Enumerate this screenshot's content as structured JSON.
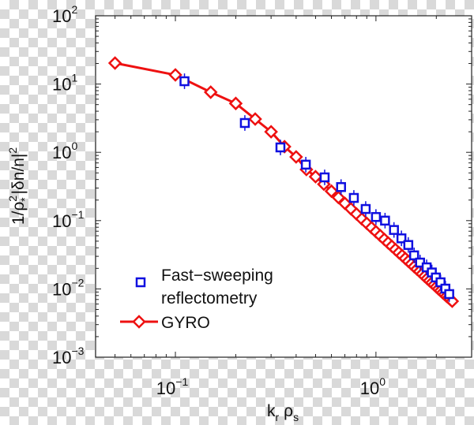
{
  "chart_data": {
    "type": "scatter",
    "x_scale": "log",
    "y_scale": "log",
    "xlim": [
      0.04,
      3
    ],
    "ylim": [
      0.001,
      100
    ],
    "xlabel": "k_r ρ_s",
    "ylabel": "1/ρ*² |δn/n|²",
    "x_ticks": [
      {
        "base": "10",
        "exp": "−1",
        "value": 0.1
      },
      {
        "base": "10",
        "exp": "0",
        "value": 1
      }
    ],
    "y_ticks": [
      {
        "base": "10",
        "exp": "2",
        "value": 100
      },
      {
        "base": "10",
        "exp": "1",
        "value": 10
      },
      {
        "base": "10",
        "exp": "0",
        "value": 1
      },
      {
        "base": "10",
        "exp": "−1",
        "value": 0.1
      },
      {
        "base": "10",
        "exp": "−2",
        "value": 0.01
      },
      {
        "base": "10",
        "exp": "−3",
        "value": 0.001
      }
    ],
    "grid": false,
    "legend_placement": "bottom-left",
    "series": [
      {
        "name": "Fast−sweeping reflectometry",
        "name_lines": [
          "Fast−sweeping",
          "reflectometry"
        ],
        "color": "#1010e0",
        "marker": "square",
        "error_bars": true,
        "x": [
          0.111,
          0.222,
          0.334,
          0.447,
          0.555,
          0.67,
          0.776,
          0.889,
          1.0,
          1.11,
          1.23,
          1.34,
          1.45,
          1.55,
          1.66,
          1.79,
          1.9,
          1.99,
          2.1,
          2.22,
          2.32
        ],
        "y": [
          11.0,
          2.69,
          1.18,
          0.66,
          0.43,
          0.31,
          0.215,
          0.148,
          0.113,
          0.1,
          0.073,
          0.055,
          0.044,
          0.031,
          0.0243,
          0.0207,
          0.0174,
          0.0147,
          0.0125,
          0.0101,
          0.0084
        ]
      },
      {
        "name": "GYRO",
        "color": "#ee1111",
        "marker": "diamond",
        "line": true,
        "x": [
          0.05,
          0.1,
          0.15,
          0.2,
          0.25,
          0.3,
          0.35,
          0.4,
          0.45,
          0.5,
          0.55,
          0.6,
          0.65,
          0.7,
          0.75,
          0.8,
          0.85,
          0.9,
          0.95,
          1.0,
          1.05,
          1.1,
          1.15,
          1.2,
          1.25,
          1.3,
          1.35,
          1.4,
          1.45,
          1.5,
          1.55,
          1.6,
          1.65,
          1.7,
          1.75,
          1.8,
          1.85,
          1.9,
          1.95,
          2.0,
          2.05,
          2.1,
          2.15,
          2.2,
          2.25,
          2.3,
          2.35,
          2.4
        ],
        "y": [
          20.3,
          13.6,
          7.6,
          5.2,
          3.07,
          2.0,
          1.21,
          0.857,
          0.56,
          0.44,
          0.341,
          0.27,
          0.218,
          0.179,
          0.149,
          0.125,
          0.106,
          0.0912,
          0.0789,
          0.0688,
          0.0604,
          0.0533,
          0.0473,
          0.0422,
          0.0378,
          0.034,
          0.0308,
          0.0279,
          0.0254,
          0.0232,
          0.0212,
          0.0195,
          0.018,
          0.0166,
          0.0153,
          0.0142,
          0.0132,
          0.0123,
          0.0115,
          0.0107,
          0.01,
          0.0094,
          0.0088,
          0.0083,
          0.0078,
          0.0074,
          0.007,
          0.0066
        ]
      }
    ]
  }
}
